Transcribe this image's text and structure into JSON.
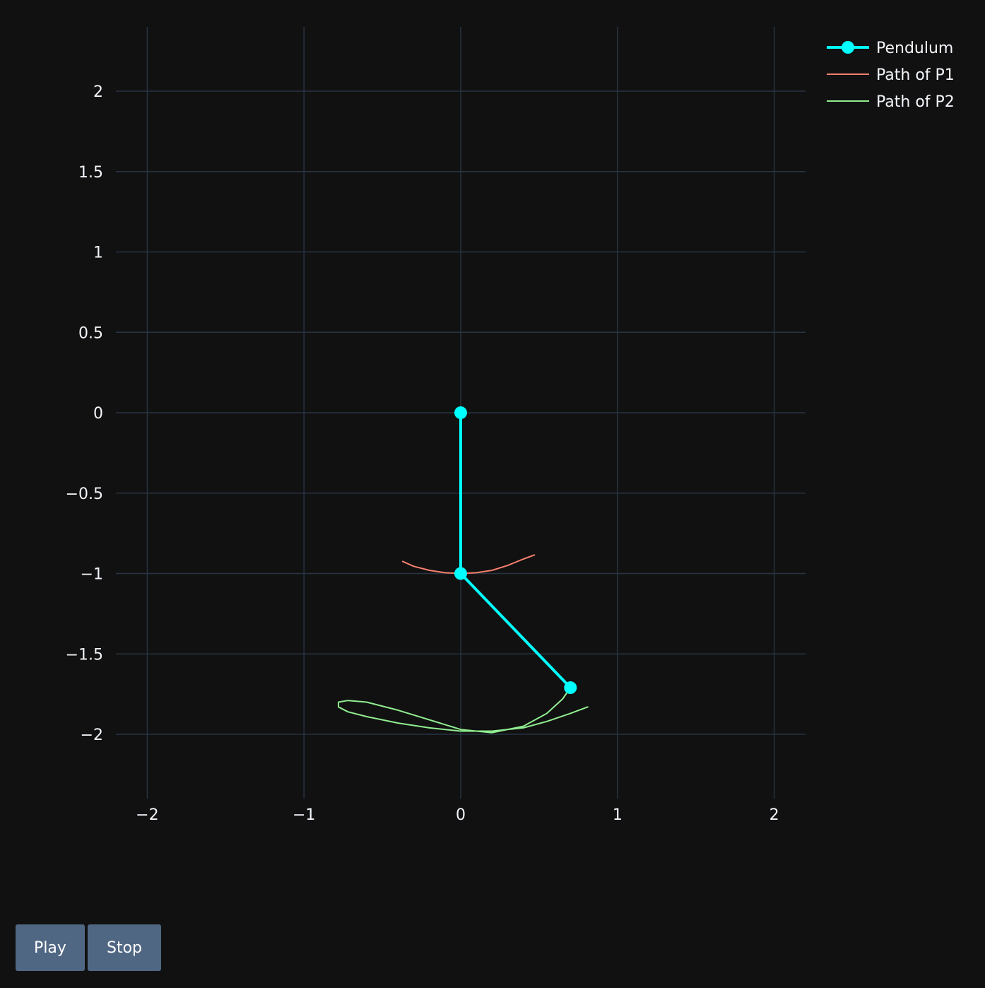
{
  "chart_data": {
    "type": "scatter",
    "xlim": [
      -2.2,
      2.2
    ],
    "ylim": [
      -2.4,
      2.4
    ],
    "x_ticks": [
      -2,
      -1,
      0,
      1,
      2
    ],
    "x_tick_labels": [
      "−2",
      "−1",
      "0",
      "1",
      "2"
    ],
    "y_ticks": [
      2,
      1.5,
      1,
      0.5,
      0,
      -0.5,
      -1,
      -1.5,
      -2
    ],
    "y_tick_labels": [
      "2",
      "1.5",
      "1",
      "0.5",
      "0",
      "−0.5",
      "−1",
      "−1.5",
      "−2"
    ],
    "grid": true,
    "legend_position": "top-right",
    "series": [
      {
        "name": "Pendulum",
        "mode": "lines+markers",
        "color": "#00ffff",
        "x": [
          0,
          0,
          0.7
        ],
        "y": [
          0,
          -1,
          -1.71
        ]
      },
      {
        "name": "Path of P1",
        "mode": "lines",
        "color": "#f5806d",
        "x": [
          -0.37,
          -0.3,
          -0.2,
          -0.1,
          0.0,
          0.1,
          0.2,
          0.3,
          0.4,
          0.47
        ],
        "y": [
          -0.925,
          -0.955,
          -0.98,
          -0.995,
          -1.0,
          -0.995,
          -0.98,
          -0.95,
          -0.91,
          -0.885
        ]
      },
      {
        "name": "Path of P2",
        "mode": "lines",
        "color": "#90ee90",
        "x": [
          0.81,
          0.7,
          0.55,
          0.4,
          0.2,
          0.0,
          -0.2,
          -0.4,
          -0.6,
          -0.72,
          -0.78,
          -0.78,
          -0.72,
          -0.6,
          -0.4,
          -0.2,
          0.0,
          0.2,
          0.4,
          0.55,
          0.65,
          0.7
        ],
        "y": [
          -1.83,
          -1.87,
          -1.92,
          -1.96,
          -1.98,
          -1.98,
          -1.96,
          -1.93,
          -1.89,
          -1.86,
          -1.83,
          -1.8,
          -1.79,
          -1.8,
          -1.85,
          -1.91,
          -1.97,
          -1.99,
          -1.95,
          -1.87,
          -1.78,
          -1.71
        ]
      }
    ]
  },
  "controls": {
    "play_label": "Play",
    "stop_label": "Stop"
  }
}
